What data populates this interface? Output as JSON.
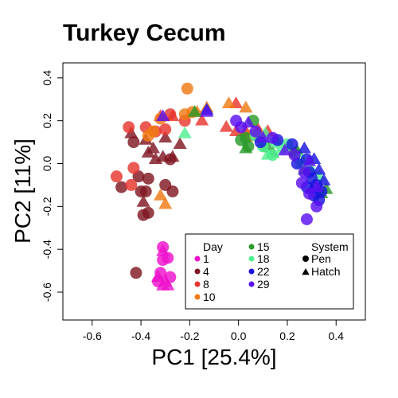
{
  "chart_data": {
    "type": "scatter",
    "title": "Turkey Cecum",
    "xlabel": "PC1 [25.4%]",
    "ylabel": "PC2 [11%]",
    "xlim": [
      -0.72,
      0.52
    ],
    "ylim": [
      -0.73,
      0.47
    ],
    "xticks": [
      "-0.6",
      "-0.4",
      "-0.2",
      "0.0",
      "0.2",
      "0.4"
    ],
    "yticks": [
      "-0.6",
      "-0.4",
      "-0.2",
      "0.0",
      "0.2",
      "0.4"
    ],
    "grid": false,
    "legend_placement": "bottom-right",
    "legend": {
      "day_title": "Day",
      "system_title": "System",
      "days": [
        {
          "label": "1",
          "color": "#ee11cc"
        },
        {
          "label": "4",
          "color": "#801722"
        },
        {
          "label": "8",
          "color": "#e8362e"
        },
        {
          "label": "10",
          "color": "#f07a14"
        },
        {
          "label": "15",
          "color": "#2a9a2a"
        },
        {
          "label": "18",
          "color": "#50f090"
        },
        {
          "label": "22",
          "color": "#1a14e0"
        },
        {
          "label": "29",
          "color": "#5a10f0"
        }
      ],
      "systems": [
        {
          "label": "Pen",
          "marker": "circle"
        },
        {
          "label": "Hatch",
          "marker": "triangle"
        }
      ]
    },
    "series": [
      {
        "day": "1",
        "system": "Pen",
        "points": [
          [
            -0.31,
            -0.39
          ],
          [
            -0.29,
            -0.44
          ],
          [
            -0.31,
            -0.45
          ],
          [
            -0.28,
            -0.53
          ],
          [
            -0.33,
            -0.55
          ],
          [
            -0.32,
            -0.51
          ]
        ]
      },
      {
        "day": "1",
        "system": "Hatch",
        "points": [
          [
            -0.31,
            -0.41
          ],
          [
            -0.33,
            -0.53
          ],
          [
            -0.3,
            -0.55
          ],
          [
            -0.31,
            -0.57
          ],
          [
            -0.29,
            -0.57
          ]
        ]
      },
      {
        "day": "4",
        "system": "Pen",
        "points": [
          [
            -0.48,
            -0.11
          ],
          [
            -0.43,
            0.1
          ],
          [
            -0.41,
            -0.06
          ],
          [
            -0.38,
            -0.13
          ],
          [
            -0.4,
            -0.13
          ],
          [
            -0.39,
            -0.24
          ],
          [
            -0.37,
            -0.23
          ],
          [
            -0.42,
            -0.51
          ],
          [
            -0.27,
            -0.13
          ],
          [
            -0.28,
            0.02
          ],
          [
            -0.3,
            -0.1
          ],
          [
            -0.37,
            -0.07
          ]
        ]
      },
      {
        "day": "4",
        "system": "Hatch",
        "points": [
          [
            -0.44,
            0.14
          ],
          [
            -0.38,
            0.11
          ],
          [
            -0.37,
            0.05
          ],
          [
            -0.35,
            0.07
          ],
          [
            -0.34,
            0.02
          ],
          [
            -0.31,
            0.03
          ],
          [
            -0.27,
            0.03
          ],
          [
            -0.24,
            0.09
          ],
          [
            -0.3,
            0.12
          ],
          [
            -0.39,
            -0.18
          ]
        ]
      },
      {
        "day": "8",
        "system": "Pen",
        "points": [
          [
            -0.45,
            0.17
          ],
          [
            -0.38,
            0.17
          ],
          [
            -0.34,
            0.15
          ],
          [
            -0.3,
            0.16
          ],
          [
            -0.28,
            0.23
          ],
          [
            -0.22,
            0.2
          ],
          [
            -0.5,
            -0.06
          ],
          [
            -0.43,
            -0.02
          ],
          [
            -0.44,
            -0.1
          ]
        ]
      },
      {
        "day": "8",
        "system": "Hatch",
        "points": [
          [
            -0.27,
            0.22
          ],
          [
            -0.32,
            0.22
          ],
          [
            -0.15,
            0.2
          ],
          [
            -0.05,
            0.17
          ],
          [
            -0.01,
            0.15
          ],
          [
            0.03,
            0.15
          ],
          [
            0.08,
            0.16
          ],
          [
            0.12,
            0.15
          ],
          [
            -0.01,
            0.28
          ]
        ]
      },
      {
        "day": "10",
        "system": "Pen",
        "points": [
          [
            -0.37,
            0.13
          ],
          [
            -0.35,
            0.15
          ],
          [
            -0.32,
            0.21
          ],
          [
            -0.21,
            0.35
          ],
          [
            -0.22,
            0.23
          ],
          [
            -0.19,
            0.24
          ],
          [
            0.05,
            0.13
          ]
        ]
      },
      {
        "day": "10",
        "system": "Hatch",
        "points": [
          [
            -0.32,
            -0.15
          ],
          [
            -0.3,
            -0.19
          ],
          [
            -0.17,
            0.24
          ],
          [
            -0.13,
            0.26
          ],
          [
            -0.04,
            0.28
          ],
          [
            0.03,
            0.26
          ],
          [
            0.09,
            0.14
          ]
        ]
      },
      {
        "day": "15",
        "system": "Pen",
        "points": [
          [
            0.04,
            0.08
          ],
          [
            0.06,
            0.2
          ],
          [
            0.03,
            0.12
          ],
          [
            0.01,
            0.11
          ],
          [
            0.23,
            0.05
          ],
          [
            0.11,
            0.08
          ]
        ]
      },
      {
        "day": "15",
        "system": "Hatch",
        "points": [
          [
            -0.18,
            0.24
          ],
          [
            0.03,
            0.07
          ],
          [
            0.14,
            0.05
          ],
          [
            0.24,
            0.06
          ],
          [
            0.34,
            -0.14
          ],
          [
            0.36,
            -0.12
          ],
          [
            0.27,
            -0.03
          ]
        ]
      },
      {
        "day": "18",
        "system": "Pen",
        "points": [
          [
            0.07,
            0.13
          ],
          [
            0.15,
            0.1
          ],
          [
            0.2,
            0.09
          ],
          [
            0.14,
            0.04
          ],
          [
            0.1,
            0.08
          ],
          [
            0.18,
            0.07
          ],
          [
            0.25,
            0.02
          ]
        ]
      },
      {
        "day": "18",
        "system": "Hatch",
        "points": [
          [
            -0.22,
            0.14
          ],
          [
            0.11,
            0.14
          ],
          [
            0.12,
            0.04
          ],
          [
            0.26,
            0.0
          ],
          [
            0.3,
            -0.03
          ],
          [
            0.33,
            -0.06
          ]
        ]
      },
      {
        "day": "22",
        "system": "Pen",
        "points": [
          [
            0.09,
            0.1
          ],
          [
            0.16,
            0.11
          ],
          [
            0.22,
            0.09
          ],
          [
            0.24,
            0.0
          ],
          [
            0.28,
            0.02
          ],
          [
            0.29,
            -0.04
          ],
          [
            0.3,
            -0.07
          ],
          [
            0.32,
            -0.1
          ],
          [
            0.34,
            -0.13
          ],
          [
            0.31,
            -0.15
          ],
          [
            0.33,
            -0.17
          ],
          [
            0.28,
            -0.11
          ]
        ]
      },
      {
        "day": "22",
        "system": "Hatch",
        "points": [
          [
            -0.13,
            0.25
          ],
          [
            0.27,
            0.07
          ],
          [
            0.31,
            0.02
          ],
          [
            0.33,
            -0.03
          ],
          [
            0.35,
            -0.08
          ],
          [
            0.3,
            -0.12
          ]
        ]
      },
      {
        "day": "29",
        "system": "Pen",
        "points": [
          [
            -0.01,
            0.2
          ],
          [
            0.01,
            0.17
          ],
          [
            0.07,
            0.15
          ],
          [
            0.14,
            0.12
          ],
          [
            0.23,
            0.04
          ],
          [
            0.27,
            -0.04
          ],
          [
            0.29,
            -0.14
          ],
          [
            0.32,
            -0.2
          ],
          [
            0.28,
            -0.26
          ],
          [
            0.26,
            -0.09
          ]
        ]
      },
      {
        "day": "29",
        "system": "Hatch",
        "points": [
          [
            -0.31,
            0.22
          ],
          [
            -0.13,
            0.24
          ],
          [
            0.04,
            0.19
          ],
          [
            0.1,
            0.12
          ],
          [
            0.19,
            0.06
          ],
          [
            0.29,
            0.01
          ],
          [
            0.32,
            -0.11
          ]
        ]
      }
    ]
  }
}
